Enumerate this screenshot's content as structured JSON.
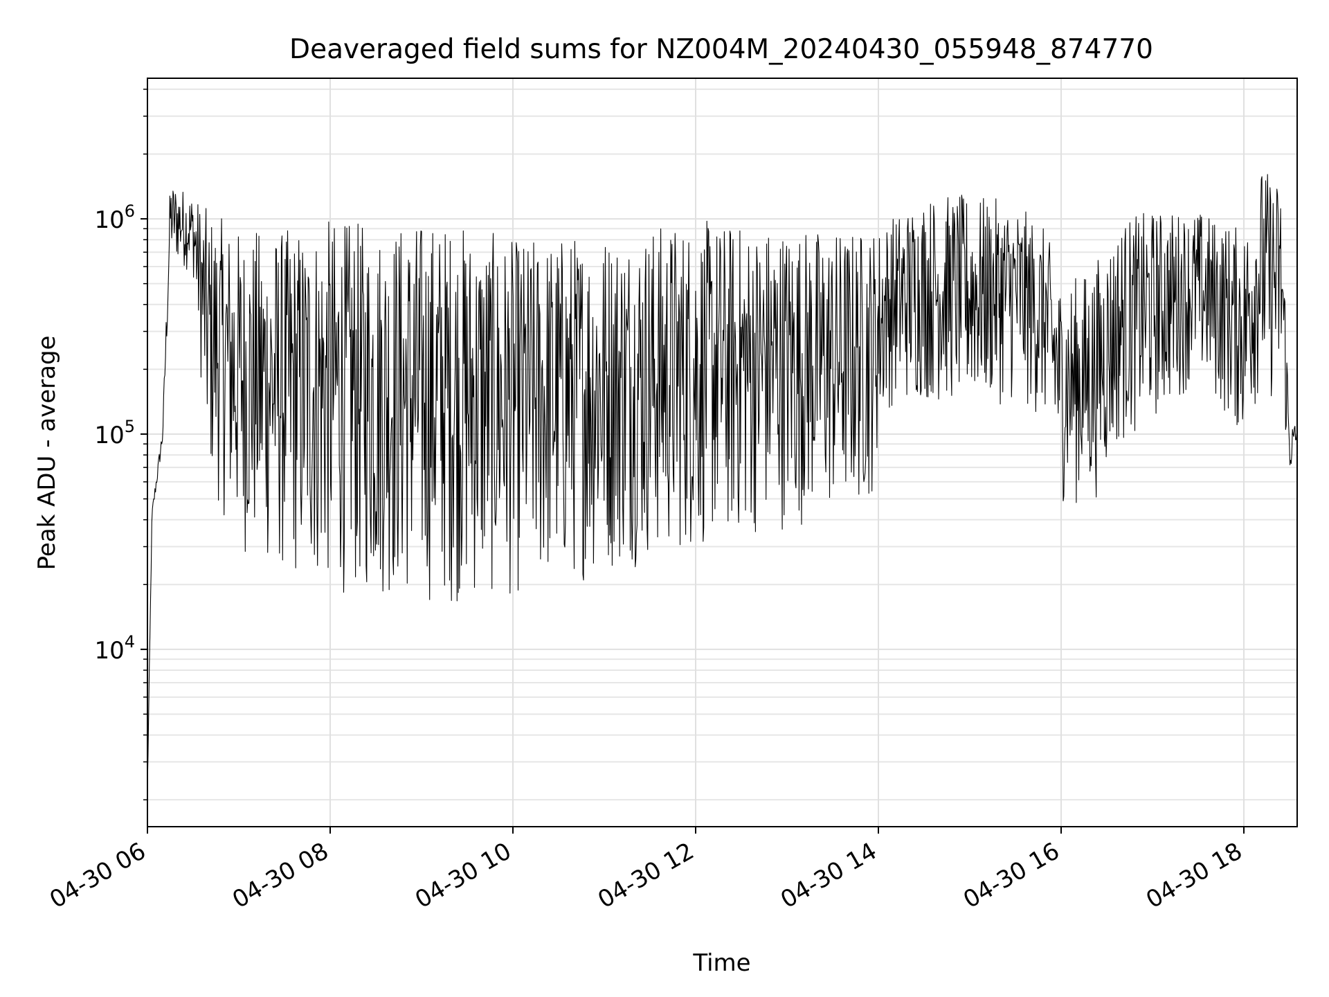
{
  "chart_data": {
    "type": "line",
    "title": "Deaveraged field sums for NZ004M_20240430_055948_874770",
    "xlabel": "Time",
    "ylabel": "Peak ADU - average",
    "yscale": "log",
    "xlim": [
      "2024-04-30T06:00",
      "2024-04-30T18:35"
    ],
    "ylim": [
      1500,
      4500000
    ],
    "grid": true,
    "x_ticks": [
      {
        "time": "2024-04-30T06:00",
        "label": "04-30 06"
      },
      {
        "time": "2024-04-30T08:00",
        "label": "04-30 08"
      },
      {
        "time": "2024-04-30T10:00",
        "label": "04-30 10"
      },
      {
        "time": "2024-04-30T12:00",
        "label": "04-30 12"
      },
      {
        "time": "2024-04-30T14:00",
        "label": "04-30 14"
      },
      {
        "time": "2024-04-30T16:00",
        "label": "04-30 16"
      },
      {
        "time": "2024-04-30T18:00",
        "label": "04-30 18"
      }
    ],
    "y_ticks": [
      {
        "value": 10000,
        "base": "10",
        "exp": "4"
      },
      {
        "value": 100000,
        "base": "10",
        "exp": "5"
      },
      {
        "value": 1000000,
        "base": "10",
        "exp": "6"
      }
    ],
    "series": [
      {
        "color": "#000000",
        "envelope": [
          {
            "time": "2024-04-30T06:00",
            "low": 2000,
            "high": 2500
          },
          {
            "time": "2024-04-30T06:03",
            "low": 40000,
            "high": 45000
          },
          {
            "time": "2024-04-30T06:10",
            "low": 90000,
            "high": 110000
          },
          {
            "time": "2024-04-30T06:15",
            "low": 650000,
            "high": 1500000
          },
          {
            "time": "2024-04-30T06:30",
            "low": 550000,
            "high": 1300000
          },
          {
            "time": "2024-04-30T06:40",
            "low": 60000,
            "high": 1100000
          },
          {
            "time": "2024-04-30T07:00",
            "low": 28000,
            "high": 900000
          },
          {
            "time": "2024-04-30T07:30",
            "low": 21000,
            "high": 900000
          },
          {
            "time": "2024-04-30T08:00",
            "low": 18000,
            "high": 1000000
          },
          {
            "time": "2024-04-30T08:30",
            "low": 17000,
            "high": 950000
          },
          {
            "time": "2024-04-30T09:00",
            "low": 16000,
            "high": 1000000
          },
          {
            "time": "2024-04-30T09:30",
            "low": 16000,
            "high": 950000
          },
          {
            "time": "2024-04-30T10:00",
            "low": 17000,
            "high": 800000
          },
          {
            "time": "2024-04-30T10:30",
            "low": 19000,
            "high": 850000
          },
          {
            "time": "2024-04-30T11:00",
            "low": 22000,
            "high": 900000
          },
          {
            "time": "2024-04-30T11:30",
            "low": 25000,
            "high": 950000
          },
          {
            "time": "2024-04-30T12:00",
            "low": 28000,
            "high": 1000000
          },
          {
            "time": "2024-04-30T12:30",
            "low": 32000,
            "high": 950000
          },
          {
            "time": "2024-04-30T13:00",
            "low": 36000,
            "high": 950000
          },
          {
            "time": "2024-04-30T13:30",
            "low": 40000,
            "high": 900000
          },
          {
            "time": "2024-04-30T13:55",
            "low": 48000,
            "high": 900000
          },
          {
            "time": "2024-04-30T14:05",
            "low": 130000,
            "high": 1000000
          },
          {
            "time": "2024-04-30T14:30",
            "low": 140000,
            "high": 1300000
          },
          {
            "time": "2024-04-30T15:00",
            "low": 130000,
            "high": 1300000
          },
          {
            "time": "2024-04-30T15:30",
            "low": 140000,
            "high": 1200000
          },
          {
            "time": "2024-04-30T15:50",
            "low": 110000,
            "high": 900000
          },
          {
            "time": "2024-04-30T16:00",
            "low": 48000,
            "high": 500000
          },
          {
            "time": "2024-04-30T16:20",
            "low": 45000,
            "high": 600000
          },
          {
            "time": "2024-04-30T16:40",
            "low": 90000,
            "high": 1000000
          },
          {
            "time": "2024-04-30T17:00",
            "low": 110000,
            "high": 1100000
          },
          {
            "time": "2024-04-30T17:30",
            "low": 180000,
            "high": 1100000
          },
          {
            "time": "2024-04-30T18:00",
            "low": 90000,
            "high": 900000
          },
          {
            "time": "2024-04-30T18:10",
            "low": 150000,
            "high": 1800000
          },
          {
            "time": "2024-04-30T18:25",
            "low": 130000,
            "high": 1500000
          },
          {
            "time": "2024-04-30T18:30",
            "low": 65000,
            "high": 110000
          },
          {
            "time": "2024-04-30T18:35",
            "low": 80000,
            "high": 120000
          }
        ]
      }
    ]
  }
}
